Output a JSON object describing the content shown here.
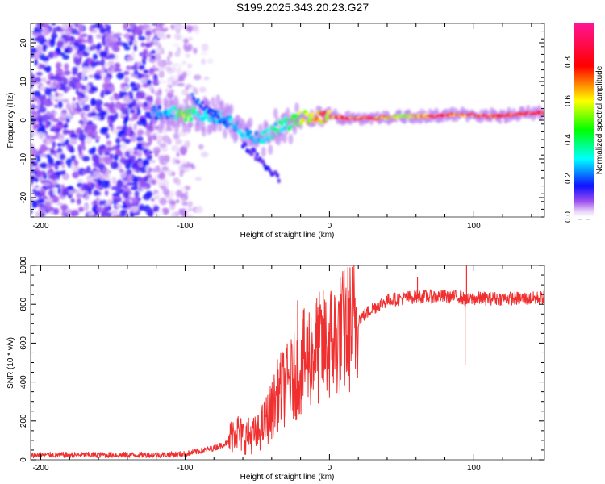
{
  "title": "S199.2025.343.20.23.G27",
  "chart_data": [
    {
      "type": "heatmap",
      "name": "spectrogram",
      "xlabel": "Height of straight line (km)",
      "ylabel": "Frequency (Hz)",
      "xlim": [
        -207,
        149
      ],
      "ylim": [
        -25,
        25
      ],
      "xticks": [
        -200,
        -100,
        0,
        100
      ],
      "xtick_labels": [
        "-200",
        "-100",
        "0",
        "100"
      ],
      "yticks": [
        -20,
        -10,
        0,
        10,
        20
      ],
      "ytick_labels": [
        "-20",
        "-10",
        "0",
        "10",
        "20"
      ],
      "colorbar": {
        "label": "Normalized spectral amplitude",
        "range": [
          0,
          1
        ],
        "ticks": [
          0.0,
          0.2,
          0.4,
          0.6,
          0.8
        ],
        "tick_labels": [
          "0.0",
          "0.2",
          "0.4",
          "0.6",
          "0.8"
        ],
        "colormap": [
          "#ffffff",
          "#d9b8f5",
          "#8a2be2",
          "#0000ff",
          "#00ffff",
          "#00ff00",
          "#ffff00",
          "#ff0000",
          "#ff1493"
        ]
      },
      "ridge": {
        "description": "Dominant frequency track vs height",
        "x": [
          -120,
          -110,
          -100,
          -90,
          -80,
          -70,
          -60,
          -50,
          -40,
          -30,
          -20,
          -10,
          0,
          10,
          30,
          50,
          70,
          90,
          110,
          130,
          149
        ],
        "freq": [
          2,
          2,
          1.5,
          1.5,
          1,
          0,
          -3,
          -5,
          -3,
          -1,
          0.5,
          1,
          1,
          0.5,
          0.5,
          1,
          1,
          1.5,
          1,
          1.5,
          2
        ],
        "amplitude": [
          0.25,
          0.3,
          0.6,
          0.35,
          0.3,
          0.3,
          0.3,
          0.3,
          0.35,
          0.4,
          0.6,
          0.7,
          0.75,
          0.9,
          0.85,
          0.6,
          0.9,
          0.8,
          0.9,
          0.9,
          0.95
        ]
      },
      "noise_region": {
        "x_range": [
          -207,
          -120
        ],
        "amplitude": 0.15
      }
    },
    {
      "type": "line",
      "name": "snr",
      "xlabel": "Height of straight line (km)",
      "ylabel": "SNR (10 * v/v)",
      "xlim": [
        -207,
        149
      ],
      "ylim": [
        0,
        1000
      ],
      "xticks": [
        -200,
        -100,
        0,
        100
      ],
      "xtick_labels": [
        "-200",
        "-100",
        "0",
        "100"
      ],
      "yticks": [
        0,
        200,
        400,
        600,
        800,
        1000
      ],
      "ytick_labels": [
        "0",
        "200",
        "400",
        "600",
        "800",
        "1000"
      ],
      "color": "#f03030",
      "series": [
        {
          "name": "SNR",
          "x": [
            -207,
            -180,
            -150,
            -120,
            -100,
            -90,
            -80,
            -70,
            -66,
            -60,
            -50,
            -40,
            -35,
            -30,
            -25,
            -20,
            -15,
            -10,
            -5,
            0,
            5,
            10,
            20,
            30,
            40,
            50,
            60,
            70,
            80,
            90,
            95,
            100,
            110,
            120,
            130,
            140,
            149
          ],
          "y": [
            25,
            25,
            25,
            25,
            30,
            45,
            60,
            90,
            160,
            120,
            130,
            250,
            350,
            380,
            420,
            480,
            540,
            560,
            580,
            600,
            630,
            660,
            720,
            780,
            820,
            830,
            840,
            840,
            840,
            840,
            820,
            830,
            830,
            830,
            830,
            830,
            835
          ]
        }
      ],
      "annotations": [
        {
          "x": -22,
          "y": 820,
          "label": "spike"
        },
        {
          "x": 1,
          "y": 860,
          "label": "spike"
        },
        {
          "x": 61,
          "y": 940,
          "label": "spike"
        },
        {
          "x": 95,
          "y": 1000,
          "label": "spike-max"
        },
        {
          "x": 94,
          "y": 490,
          "label": "dip"
        }
      ]
    }
  ]
}
